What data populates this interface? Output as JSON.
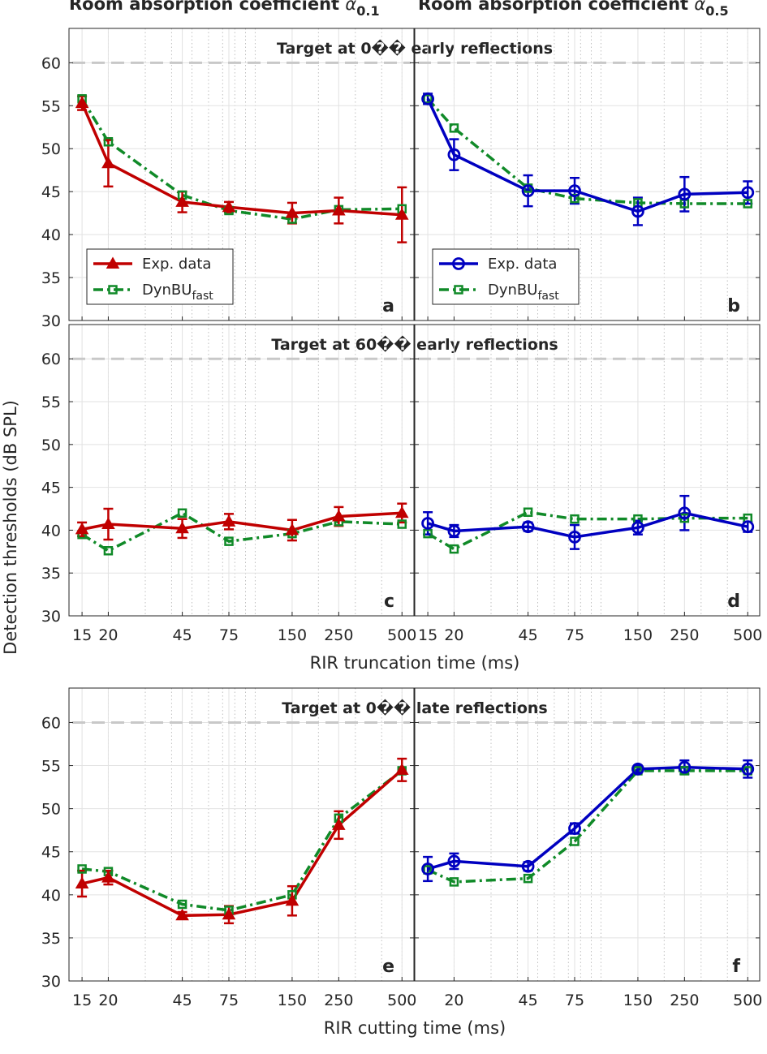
{
  "column_titles": [
    "Room absorption coefficient α0.1",
    "Room absorption coefficient α0.5"
  ],
  "column_title_parts": [
    {
      "text": "Room absorption coefficient ",
      "alpha": "α",
      "sub": "0.1"
    },
    {
      "text": "Room absorption coefficient ",
      "alpha": "α",
      "sub": "0.5"
    }
  ],
  "row_titles": [
    "Target at 0�� early reflections",
    "Target at 60�� early reflections",
    "Target at 0�� late reflections"
  ],
  "ylabel": "Detection thresholds (dB SPL)",
  "xlabels": [
    "RIR truncation time (ms)",
    "RIR cutting time (ms)"
  ],
  "panel_letters": [
    "a",
    "b",
    "c",
    "d",
    "e",
    "f"
  ],
  "legend": {
    "exp": "Exp. data",
    "model": "DynBU",
    "model_sub": "fast"
  },
  "colors": {
    "red": "#c00000",
    "blue": "#0000c0",
    "green": "#108a28",
    "ref_line": "#c8c8c8"
  },
  "chart_data": [
    {
      "panel": "a",
      "type": "line",
      "title": "Target at 0�� early reflections",
      "xscale": "log",
      "xlim": [
        13,
        570
      ],
      "ylim": [
        30,
        64
      ],
      "xticks": [
        15,
        20,
        45,
        75,
        150,
        250,
        500
      ],
      "yticks": [
        30,
        35,
        40,
        45,
        50,
        55,
        60
      ],
      "reference_line": 60,
      "series": [
        {
          "name": "Exp. data",
          "x": [
            15,
            20,
            45,
            75,
            150,
            250,
            500
          ],
          "y": [
            55.3,
            48.3,
            43.8,
            43.2,
            42.5,
            42.8,
            42.3
          ],
          "err": [
            0.8,
            2.7,
            1.2,
            0.6,
            1.2,
            1.5,
            3.2
          ]
        },
        {
          "name": "DynBUfast",
          "x": [
            15,
            20,
            45,
            75,
            150,
            250,
            500
          ],
          "y": [
            55.8,
            50.8,
            44.6,
            42.8,
            41.8,
            42.9,
            43.0
          ]
        }
      ]
    },
    {
      "panel": "b",
      "type": "line",
      "title": "",
      "xscale": "log",
      "xlim": [
        13,
        570
      ],
      "ylim": [
        30,
        64
      ],
      "xticks": [
        15,
        20,
        45,
        75,
        150,
        250,
        500
      ],
      "yticks": [
        30,
        35,
        40,
        45,
        50,
        55,
        60
      ],
      "reference_line": 60,
      "series": [
        {
          "name": "Exp. data",
          "x": [
            15,
            20,
            45,
            75,
            150,
            250,
            500
          ],
          "y": [
            55.8,
            49.3,
            45.1,
            45.1,
            42.7,
            44.7,
            44.9
          ],
          "err": [
            0.6,
            1.8,
            1.8,
            1.5,
            1.6,
            2.0,
            1.3
          ]
        },
        {
          "name": "DynBUfast",
          "x": [
            15,
            20,
            45,
            75,
            150,
            250,
            500
          ],
          "y": [
            55.8,
            52.4,
            45.4,
            44.2,
            43.7,
            43.6,
            43.6
          ]
        }
      ]
    },
    {
      "panel": "c",
      "type": "line",
      "title": "Target at 60�� early reflections",
      "xscale": "log",
      "xlim": [
        13,
        570
      ],
      "ylim": [
        30,
        64
      ],
      "xticks": [
        15,
        20,
        45,
        75,
        150,
        250,
        500
      ],
      "yticks": [
        30,
        35,
        40,
        45,
        50,
        55,
        60
      ],
      "reference_line": 60,
      "series": [
        {
          "name": "Exp. data",
          "x": [
            15,
            20,
            45,
            75,
            150,
            250,
            500
          ],
          "y": [
            40.1,
            40.7,
            40.2,
            41.0,
            40.0,
            41.6,
            42.0
          ],
          "err": [
            0.8,
            1.8,
            1.1,
            0.9,
            1.2,
            1.1,
            1.1
          ]
        },
        {
          "name": "DynBUfast",
          "x": [
            15,
            20,
            45,
            75,
            150,
            250,
            500
          ],
          "y": [
            39.5,
            37.6,
            42.0,
            38.7,
            39.6,
            41.0,
            40.7
          ]
        }
      ]
    },
    {
      "panel": "d",
      "type": "line",
      "title": "",
      "xscale": "log",
      "xlim": [
        13,
        570
      ],
      "ylim": [
        30,
        64
      ],
      "xticks": [
        15,
        20,
        45,
        75,
        150,
        250,
        500
      ],
      "yticks": [
        30,
        35,
        40,
        45,
        50,
        55,
        60
      ],
      "reference_line": 60,
      "series": [
        {
          "name": "Exp. data",
          "x": [
            15,
            20,
            45,
            75,
            150,
            250,
            500
          ],
          "y": [
            40.8,
            39.9,
            40.4,
            39.2,
            40.3,
            42.0,
            40.4
          ],
          "err": [
            1.3,
            0.7,
            0.5,
            1.4,
            0.8,
            2.0,
            0.6
          ]
        },
        {
          "name": "DynBUfast",
          "x": [
            15,
            20,
            45,
            75,
            150,
            250,
            500
          ],
          "y": [
            39.6,
            37.8,
            42.1,
            41.3,
            41.3,
            41.4,
            41.4
          ]
        }
      ]
    },
    {
      "panel": "e",
      "type": "line",
      "title": "Target at 0�� late reflections",
      "xscale": "log",
      "xlim": [
        13,
        570
      ],
      "ylim": [
        30,
        64
      ],
      "xticks": [
        15,
        20,
        45,
        75,
        150,
        250,
        500
      ],
      "yticks": [
        30,
        35,
        40,
        45,
        50,
        55,
        60
      ],
      "reference_line": 60,
      "series": [
        {
          "name": "Exp. data",
          "x": [
            15,
            20,
            45,
            75,
            150,
            250,
            500
          ],
          "y": [
            41.3,
            42.0,
            37.6,
            37.7,
            39.3,
            48.1,
            54.5
          ],
          "err": [
            1.5,
            0.8,
            0.4,
            1.0,
            1.7,
            1.6,
            1.3
          ]
        },
        {
          "name": "DynBUfast",
          "x": [
            15,
            20,
            45,
            75,
            150,
            250,
            500
          ],
          "y": [
            43.0,
            42.7,
            38.9,
            38.2,
            40.0,
            48.9,
            54.4
          ]
        }
      ]
    },
    {
      "panel": "f",
      "type": "line",
      "title": "",
      "xscale": "log",
      "xlim": [
        13,
        570
      ],
      "ylim": [
        30,
        64
      ],
      "xticks": [
        20,
        45,
        75,
        150,
        250,
        500
      ],
      "yticks": [
        30,
        35,
        40,
        45,
        50,
        55,
        60
      ],
      "reference_line": 60,
      "series": [
        {
          "name": "Exp. data",
          "x": [
            15,
            20,
            45,
            75,
            150,
            250,
            500
          ],
          "y": [
            43.0,
            43.9,
            43.3,
            47.7,
            54.6,
            54.8,
            54.6
          ],
          "err": [
            1.4,
            0.9,
            0.5,
            0.6,
            0.4,
            0.8,
            1.0
          ]
        },
        {
          "name": "DynBUfast",
          "x": [
            15,
            20,
            45,
            75,
            150,
            250,
            500
          ],
          "y": [
            42.9,
            41.5,
            41.9,
            46.2,
            54.4,
            54.4,
            54.4
          ]
        }
      ]
    }
  ]
}
